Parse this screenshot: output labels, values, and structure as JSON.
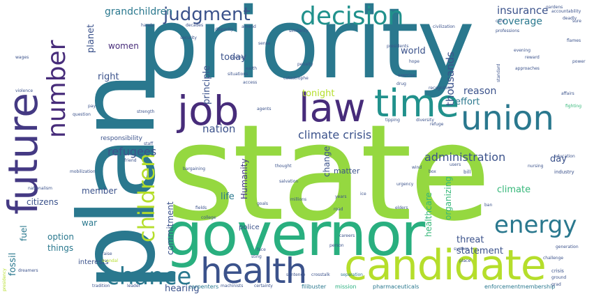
{
  "palette": {
    "teal_dark": "#2a788e",
    "teal": "#21918c",
    "blue": "#3b528b",
    "indigo": "#443983",
    "purple": "#472c7a",
    "green": "#5ec962",
    "lime": "#95d840",
    "yellow": "#b5de2b",
    "sea": "#29af7f",
    "mint": "#35b779"
  },
  "words": {
    "state": "state",
    "priority": "priority",
    "plan": "plan",
    "governor": "governor",
    "candidate": "candidate",
    "health": "health",
    "future": "future",
    "job": "job",
    "law": "law",
    "time": "time",
    "decision": "decision",
    "union": "union",
    "number": "number",
    "children": "children",
    "chance": "chance",
    "energy": "energy",
    "judgment": "judgment",
    "grandchildren": "grandchildren",
    "climate_crisis": "climate crisis",
    "administration": "administration",
    "refugees": "refugees",
    "nation": "nation",
    "women": "women",
    "today": "today",
    "world": "world",
    "insurance": "insurance",
    "coverage": "coverage",
    "thousands": "thousands",
    "reason": "reason",
    "effort": "effort",
    "tonight": "tonight",
    "principle": "principle",
    "right": "right",
    "planet": "planet",
    "day": "day",
    "climate": "climate",
    "threat": "threat",
    "statement": "statement",
    "member": "member",
    "citizens": "citizens",
    "life": "life",
    "war": "war",
    "option": "option",
    "things": "things",
    "fuel": "fuel",
    "fossil": "fossil",
    "hearing": "hearing",
    "commitment": "commitment",
    "humanity": "Humanity",
    "change": "change",
    "matter": "matter",
    "healthcare": "healthcare",
    "organizing": "organizing",
    "responsibility": "responsibility",
    "police": "police",
    "interests": "interests",
    "carpenters": "carpenters",
    "filibuster": "filibuster",
    "pharmaceuticals": "pharmaceuticals",
    "enforcementmembership": "enforcementmembership",
    "mission": "mission",
    "crosstalk": "crosstalk",
    "separation": "separation",
    "bill": "bill",
    "industry": "industry",
    "education": "education",
    "nursing": "nursing",
    "generation": "generation",
    "challenge": "challenge",
    "system": "system",
    "urgency": "urgency",
    "recognition": "recognition",
    "approaches": "approaches",
    "professions": "professions",
    "evening": "evening",
    "reward": "reward",
    "hope": "hope",
    "presidents": "presidents",
    "civilization": "civilization",
    "tipping": "tipping",
    "diversity": "diversity",
    "refuge": "refuge",
    "drug": "drug",
    "exercise": "exercise",
    "strength": "strength",
    "bargaining": "bargaining",
    "mobilization": "mobilization",
    "college": "college",
    "fields": "fields",
    "goals": "goals",
    "thought": "thought",
    "salvation": "salvation",
    "millions": "millions",
    "years": "years",
    "road": "road",
    "elders": "elders",
    "ice": "ice",
    "box": "box",
    "wind": "wind",
    "users": "users",
    "crisis": "crisis",
    "ground": "ground",
    "ban": "ban",
    "wages": "wages",
    "violence": "violence",
    "question": "question",
    "pay": "pay",
    "staff": "staff",
    "friend": "friend",
    "security": "security",
    "similarity": "similarity",
    "penalty": "penalty",
    "catastrophe": "catastrophe",
    "earth": "earth",
    "access": "access",
    "situations": "situations",
    "seeing": "seeing",
    "sense": "sense",
    "disparity": "disparity",
    "hands": "hands",
    "decades": "decades",
    "amend": "amend",
    "gardens": "gardens",
    "accountability": "accountability",
    "deadly": "deadly",
    "flames": "flames",
    "fighting": "fighting",
    "affairs": "affairs",
    "standard": "standard",
    "grad": "grad",
    "raise": "raise",
    "scandal": "scandal",
    "dreamers": "dreamers",
    "leader": "leader",
    "tradition": "tradition",
    "machinists": "machinists",
    "sentence": "sentence",
    "certainty": "certainty",
    "presidency": "presidency",
    "nationalism": "nationalism",
    "face": "face",
    "sting": "sting",
    "agents": "agents",
    "person": "person",
    "careers": "careers",
    "place": "place",
    "power": "power",
    "care": "care",
    "sure": "sure"
  }
}
